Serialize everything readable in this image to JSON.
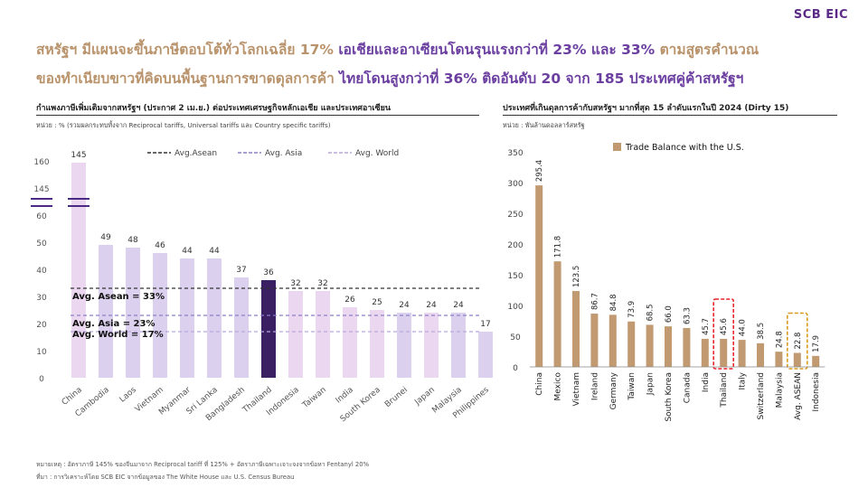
{
  "brand": "SCB EIC",
  "headline": {
    "line1_a": "สหรัฐฯ มีแผนจะขึ้นภาษีตอบโต้ทั่วโลกเฉลี่ย 17%",
    "line1_b": "เอเชียและอาเซียนโดนรุนแรงกว่าที่ 23% และ 33%",
    "line1_c": "ตามสูตรคำนวณ",
    "line2_a": "ของทำเนียบขาวที่คิดบนพื้นฐานการขาดดุลการค้า",
    "line2_b": "ไทยโดนสูงกว่าที่ 36% ติดอันดับ 20 จาก 185 ประเทศคู่ค้าสหรัฐฯ"
  },
  "left_panel": {
    "title": "กำแพงภาษีเพิ่มเติมจากสหรัฐฯ (ประกาศ 2 เม.ย.) ต่อประเทศเศรษฐกิจหลักเอเชีย และประเทศอาเซียน",
    "unit": "หน่วย : % (รวมผลกระทบทั้งจาก Reciprocal tariffs, Universal tariffs และ Country specific tariffs)"
  },
  "right_panel": {
    "title": "ประเทศที่เกินดุลการค้ากับสหรัฐฯ มากที่สุด 15 ลำดับแรกในปี 2024 (Dirty 15)",
    "unit": "หน่วย : พันล้านดอลลาร์สหรัฐ"
  },
  "footnotes": {
    "note": "หมายเหตุ : อัตราภาษี 145% ของจีนมาจาก Reciprocal tariff ที่ 125% + อัตราภาษีเฉพาะเจาะจงจากข้อหา Fentanyl 20%",
    "source": "ที่มา : การวิเคราะห์โดย SCB EIC จากข้อมูลของ The White House และ U.S. Census Bureau"
  },
  "chart_data": [
    {
      "type": "bar",
      "categories": [
        "China",
        "Cambodia",
        "Laos",
        "Vietnam",
        "Myanmar",
        "Sri Lanka",
        "Bangladesh",
        "Thailand",
        "Indonesia",
        "Taiwan",
        "India",
        "South Korea",
        "Brunei",
        "Japan",
        "Malaysia",
        "Philippines"
      ],
      "values": [
        145,
        49,
        48,
        46,
        44,
        44,
        37,
        36,
        32,
        32,
        26,
        25,
        24,
        24,
        24,
        17
      ],
      "ylim": [
        0,
        60
      ],
      "yticks": [
        0,
        10,
        20,
        30,
        40,
        50,
        60
      ],
      "axis_break": {
        "top_tick": "160",
        "break_label": "145"
      },
      "reference_lines": [
        {
          "name": "Avg.Asean",
          "value": 33,
          "label": "Avg. Asean = 33%",
          "color": "#333333",
          "style": "dashed"
        },
        {
          "name": "Avg. Asia",
          "value": 23,
          "label": "Avg. Asia = 23%",
          "color": "#8a7fc8",
          "style": "dashed"
        },
        {
          "name": "Avg. World",
          "value": 17,
          "label": "Avg. World = 17%",
          "color": "#b8a9d9",
          "style": "dashed"
        }
      ],
      "colors": {
        "asean": "#dcd0ef",
        "asia": "#ecd7f0",
        "thailand": "#3a1f63"
      },
      "asia_group": [
        "China",
        "Indonesia",
        "Taiwan",
        "India",
        "South Korea",
        "Japan"
      ],
      "highlight": "Thailand",
      "legend_placement": "top"
    },
    {
      "type": "bar",
      "categories": [
        "China",
        "Mexico",
        "Vietnam",
        "Ireland",
        "Germany",
        "Taiwan",
        "Japan",
        "South Korea",
        "Canada",
        "India",
        "Thailand",
        "Italy",
        "Switzerland",
        "Malaysia",
        "Avg. ASEAN",
        "Indonesia"
      ],
      "values": [
        295.4,
        171.8,
        123.5,
        86.7,
        84.8,
        73.9,
        68.5,
        66.0,
        63.3,
        45.7,
        45.6,
        44.0,
        38.5,
        24.8,
        22.8,
        17.9
      ],
      "value_labels": [
        "295.4",
        "171.8",
        "123.5",
        "86.7",
        "84.8",
        "73.9",
        "68.5",
        "66.0",
        "63.3",
        "45.7",
        "45.6",
        "44.0",
        "38.5",
        "24.8",
        "22.8",
        "17.9"
      ],
      "series": [
        {
          "name": "Trade Balance with the U.S.",
          "color": "#c19a72"
        }
      ],
      "ylim": [
        0,
        350
      ],
      "yticks": [
        0,
        50,
        100,
        150,
        200,
        250,
        300,
        350
      ],
      "highlight_boxes": [
        {
          "category": "Thailand",
          "color": "#e8242c"
        },
        {
          "category": "Avg. ASEAN",
          "color": "#d99a1e"
        }
      ],
      "legend_placement": "top"
    }
  ]
}
